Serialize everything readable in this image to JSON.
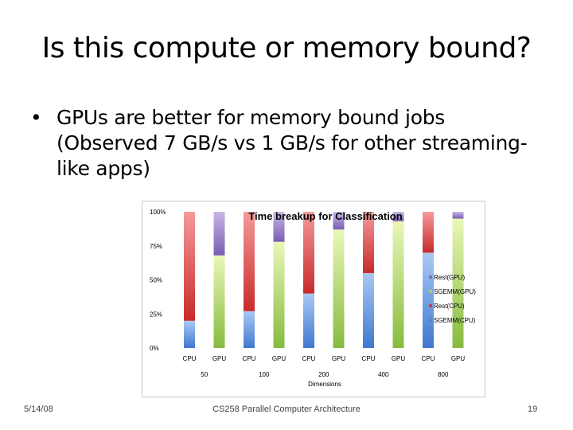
{
  "slide": {
    "title": "Is this compute or memory bound?",
    "bullet_marker": "•",
    "bullet_text": "GPUs are better for memory bound jobs (Observed 7 GB/s vs  1 GB/s for other streaming-like apps)"
  },
  "footer": {
    "date": "5/14/08",
    "course": "CS258 Parallel Computer Architecture",
    "page": "19"
  },
  "chart_data": {
    "type": "bar",
    "stacked": true,
    "title": "Time breakup for Classification",
    "xlabel": "Dimensions",
    "ylabel": "",
    "ylim": [
      0,
      100
    ],
    "yticks": [
      "0%",
      "25%",
      "50%",
      "75%",
      "100%"
    ],
    "categories": [
      "CPU",
      "GPU",
      "CPU",
      "GPU",
      "CPU",
      "GPU",
      "CPU",
      "GPU",
      "CPU",
      "GPU"
    ],
    "groups": [
      "50",
      "100",
      "200",
      "400",
      "800"
    ],
    "series": [
      {
        "name": "SGEMM(CPU)",
        "color": "#4f86d8",
        "values": [
          20,
          0,
          27,
          0,
          40,
          0,
          55,
          0,
          70,
          0
        ]
      },
      {
        "name": "Rest(CPU)",
        "color": "#d83a3a",
        "values": [
          80,
          0,
          73,
          0,
          60,
          0,
          45,
          0,
          30,
          0
        ]
      },
      {
        "name": "SGEMM(GPU)",
        "color": "#a6d15a",
        "values": [
          0,
          68,
          0,
          78,
          0,
          87,
          0,
          93,
          0,
          95
        ]
      },
      {
        "name": "Rest(GPU)",
        "color": "#8a6cc0",
        "values": [
          0,
          32,
          0,
          22,
          0,
          13,
          0,
          7,
          0,
          5
        ]
      }
    ],
    "legend_position": "right",
    "grid": false
  }
}
